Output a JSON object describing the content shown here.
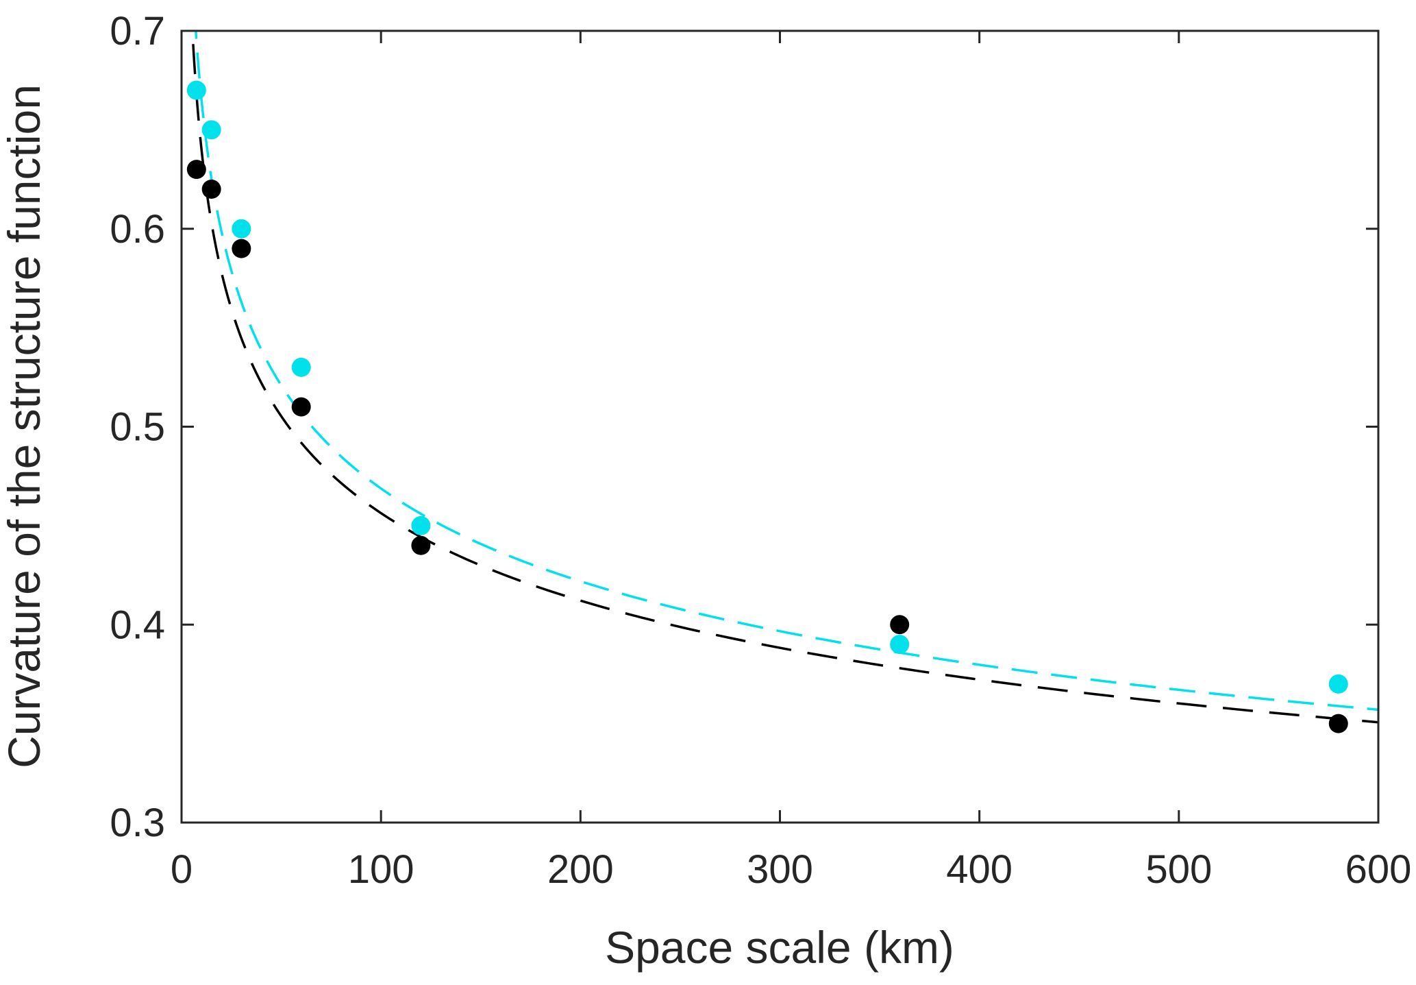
{
  "figure": {
    "background": "#ffffff",
    "axis_color": "#262626"
  },
  "chart_data": {
    "type": "scatter",
    "title": "",
    "xlabel": "Space scale (km)",
    "ylabel": "Curvature of the structure function",
    "xlim": [
      0,
      600
    ],
    "ylim": [
      0.3,
      0.7
    ],
    "grid": false,
    "legend": "none",
    "x_ticks": [
      0,
      100,
      200,
      300,
      400,
      500,
      600
    ],
    "x_tick_labels": [
      "0",
      "100",
      "200",
      "300",
      "400",
      "500",
      "600"
    ],
    "y_ticks": [
      0.3,
      0.4,
      0.5,
      0.6,
      0.7
    ],
    "y_tick_labels": [
      "0.3",
      "0.4",
      "0.5",
      "0.6",
      "0.7"
    ],
    "series": [
      {
        "name": "black-observations",
        "color": "#000000",
        "marker": "circle",
        "x": [
          7.5,
          15,
          30,
          60,
          120,
          360,
          580
        ],
        "y": [
          0.63,
          0.62,
          0.59,
          0.51,
          0.44,
          0.4,
          0.35
        ]
      },
      {
        "name": "cyan-observations",
        "color": "#00e1ec",
        "marker": "circle",
        "x": [
          7.5,
          15,
          30,
          60,
          120,
          360,
          580
        ],
        "y": [
          0.67,
          0.65,
          0.6,
          0.53,
          0.45,
          0.39,
          0.37
        ]
      }
    ],
    "fit_curves": [
      {
        "name": "black-power-law-fit",
        "color": "#000000",
        "style": "dashed",
        "model": "power",
        "a": 0.898,
        "p": 0.147,
        "dash": [
          44,
          24
        ]
      },
      {
        "name": "cyan-power-law-fit",
        "color": "#00e1ec",
        "style": "dashed",
        "model": "power",
        "a": 0.944,
        "p": 0.152,
        "dash": [
          38,
          20
        ]
      }
    ]
  }
}
